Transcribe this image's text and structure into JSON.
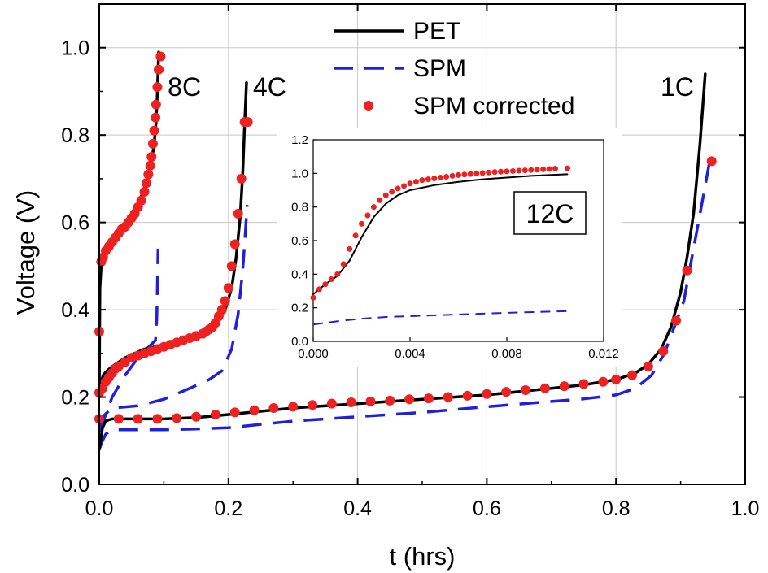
{
  "chart_data": [
    {
      "type": "line",
      "xlabel": "t (hrs)",
      "ylabel": "Voltage (V)",
      "xlim": [
        0.0,
        1.0
      ],
      "ylim": [
        0.0,
        1.1
      ],
      "xticks": [
        0.0,
        0.2,
        0.4,
        0.6,
        0.8,
        1.0
      ],
      "xtick_labels": [
        "0.0",
        "0.2",
        "0.4",
        "0.6",
        "0.8",
        "1.0"
      ],
      "yticks": [
        0.0,
        0.2,
        0.4,
        0.6,
        0.8,
        1.0
      ],
      "ytick_labels": [
        "0.0",
        "0.2",
        "0.4",
        "0.6",
        "0.8",
        "1.0"
      ],
      "grid": true,
      "legend": {
        "position": "top-center",
        "entries": [
          {
            "label": "PET",
            "style": "solid-line",
            "color": "#000000"
          },
          {
            "label": "SPM",
            "style": "dashed-line",
            "color": "#1f1fe0"
          },
          {
            "label": "SPM corrected",
            "style": "markers",
            "color": "#ee2020"
          }
        ]
      },
      "annotations": [
        {
          "text": "8C",
          "x": 0.106,
          "y": 0.89
        },
        {
          "text": "4C",
          "x": 0.238,
          "y": 0.89
        },
        {
          "text": "1C",
          "x": 0.869,
          "y": 0.89
        }
      ],
      "series": [
        {
          "name": "PET",
          "rate": "8C",
          "style": "solid",
          "color": "#000000",
          "x": [
            0.0,
            0.001,
            0.003,
            0.006,
            0.01,
            0.015,
            0.02,
            0.03,
            0.04,
            0.05,
            0.06,
            0.07,
            0.08,
            0.085,
            0.088,
            0.09,
            0.092
          ],
          "y": [
            0.21,
            0.45,
            0.5,
            0.52,
            0.535,
            0.55,
            0.56,
            0.575,
            0.59,
            0.61,
            0.64,
            0.68,
            0.73,
            0.78,
            0.83,
            0.9,
            0.99
          ]
        },
        {
          "name": "SPM",
          "rate": "8C",
          "style": "dashed",
          "color": "#1f1fe0",
          "x": [
            0.0,
            0.005,
            0.02,
            0.04,
            0.06,
            0.08,
            0.087,
            0.089,
            0.09,
            0.091
          ],
          "y": [
            0.12,
            0.14,
            0.2,
            0.25,
            0.29,
            0.32,
            0.33,
            0.38,
            0.46,
            0.54
          ]
        },
        {
          "name": "SPM corrected",
          "rate": "8C",
          "style": "markers",
          "color": "#ee2020",
          "x": [
            0.0,
            0.003,
            0.006,
            0.01,
            0.015,
            0.02,
            0.025,
            0.03,
            0.035,
            0.04,
            0.045,
            0.05,
            0.055,
            0.06,
            0.065,
            0.07,
            0.073,
            0.076,
            0.079,
            0.081,
            0.083,
            0.085,
            0.087,
            0.088,
            0.09,
            0.092,
            0.095
          ],
          "y": [
            0.35,
            0.51,
            0.52,
            0.535,
            0.545,
            0.555,
            0.565,
            0.575,
            0.585,
            0.59,
            0.6,
            0.61,
            0.62,
            0.635,
            0.65,
            0.67,
            0.69,
            0.71,
            0.73,
            0.75,
            0.78,
            0.81,
            0.84,
            0.87,
            0.91,
            0.95,
            0.98
          ]
        },
        {
          "name": "PET",
          "rate": "4C",
          "style": "solid",
          "color": "#000000",
          "x": [
            0.0,
            0.002,
            0.006,
            0.012,
            0.02,
            0.04,
            0.07,
            0.1,
            0.13,
            0.16,
            0.18,
            0.195,
            0.205,
            0.212,
            0.218,
            0.222,
            0.225,
            0.228
          ],
          "y": [
            0.21,
            0.23,
            0.25,
            0.26,
            0.27,
            0.29,
            0.31,
            0.32,
            0.33,
            0.35,
            0.37,
            0.4,
            0.45,
            0.52,
            0.61,
            0.71,
            0.82,
            0.92
          ]
        },
        {
          "name": "SPM",
          "rate": "4C",
          "style": "dashed",
          "color": "#1f1fe0",
          "x": [
            0.0,
            0.005,
            0.02,
            0.06,
            0.1,
            0.14,
            0.17,
            0.19,
            0.205,
            0.215,
            0.222,
            0.226,
            0.229
          ],
          "y": [
            0.13,
            0.155,
            0.175,
            0.18,
            0.195,
            0.22,
            0.24,
            0.26,
            0.31,
            0.39,
            0.49,
            0.57,
            0.64
          ]
        },
        {
          "name": "SPM corrected",
          "rate": "4C",
          "style": "markers",
          "color": "#ee2020",
          "x": [
            0.0,
            0.005,
            0.01,
            0.015,
            0.02,
            0.025,
            0.03,
            0.04,
            0.05,
            0.06,
            0.07,
            0.08,
            0.09,
            0.1,
            0.11,
            0.12,
            0.13,
            0.14,
            0.15,
            0.16,
            0.165,
            0.17,
            0.175,
            0.18,
            0.185,
            0.19,
            0.195,
            0.2,
            0.205,
            0.21,
            0.215,
            0.22,
            0.225,
            0.23
          ],
          "y": [
            0.21,
            0.22,
            0.235,
            0.245,
            0.255,
            0.265,
            0.27,
            0.28,
            0.29,
            0.295,
            0.3,
            0.305,
            0.31,
            0.315,
            0.32,
            0.325,
            0.33,
            0.335,
            0.34,
            0.345,
            0.35,
            0.355,
            0.36,
            0.37,
            0.385,
            0.4,
            0.42,
            0.45,
            0.5,
            0.55,
            0.62,
            0.7,
            0.83,
            0.83
          ]
        },
        {
          "name": "PET",
          "rate": "1C",
          "style": "solid",
          "color": "#000000",
          "x": [
            0.0,
            0.005,
            0.01,
            0.015,
            0.02,
            0.05,
            0.1,
            0.15,
            0.2,
            0.3,
            0.4,
            0.5,
            0.6,
            0.7,
            0.75,
            0.8,
            0.83,
            0.85,
            0.87,
            0.885,
            0.9,
            0.91,
            0.92,
            0.93,
            0.938
          ],
          "y": [
            0.08,
            0.13,
            0.145,
            0.148,
            0.15,
            0.15,
            0.15,
            0.153,
            0.16,
            0.175,
            0.185,
            0.195,
            0.205,
            0.22,
            0.228,
            0.24,
            0.255,
            0.275,
            0.31,
            0.36,
            0.44,
            0.52,
            0.62,
            0.78,
            0.94
          ]
        },
        {
          "name": "SPM",
          "rate": "1C",
          "style": "dashed",
          "color": "#1f1fe0",
          "x": [
            0.0,
            0.005,
            0.01,
            0.02,
            0.05,
            0.1,
            0.15,
            0.2,
            0.3,
            0.4,
            0.5,
            0.6,
            0.7,
            0.75,
            0.8,
            0.83,
            0.855,
            0.875,
            0.89,
            0.905,
            0.915,
            0.925,
            0.935,
            0.945
          ],
          "y": [
            0.08,
            0.1,
            0.115,
            0.125,
            0.125,
            0.125,
            0.127,
            0.13,
            0.145,
            0.155,
            0.165,
            0.178,
            0.19,
            0.196,
            0.205,
            0.22,
            0.25,
            0.3,
            0.36,
            0.42,
            0.5,
            0.58,
            0.66,
            0.74
          ]
        },
        {
          "name": "SPM corrected",
          "rate": "1C",
          "style": "markers",
          "color": "#ee2020",
          "x": [
            0.0,
            0.03,
            0.06,
            0.09,
            0.12,
            0.15,
            0.18,
            0.21,
            0.24,
            0.27,
            0.3,
            0.33,
            0.36,
            0.39,
            0.42,
            0.45,
            0.48,
            0.51,
            0.54,
            0.57,
            0.6,
            0.63,
            0.66,
            0.69,
            0.72,
            0.75,
            0.78,
            0.8,
            0.825,
            0.85,
            0.873,
            0.893,
            0.91,
            0.948
          ],
          "y": [
            0.15,
            0.15,
            0.15,
            0.15,
            0.152,
            0.155,
            0.16,
            0.165,
            0.17,
            0.175,
            0.178,
            0.182,
            0.185,
            0.188,
            0.19,
            0.192,
            0.195,
            0.197,
            0.2,
            0.203,
            0.207,
            0.212,
            0.216,
            0.22,
            0.225,
            0.23,
            0.235,
            0.24,
            0.25,
            0.27,
            0.305,
            0.375,
            0.49,
            0.74
          ]
        }
      ]
    },
    {
      "type": "line",
      "xlim": [
        0.0,
        0.012
      ],
      "ylim": [
        0.0,
        1.2
      ],
      "xticks": [
        0.0,
        0.004,
        0.008,
        0.012
      ],
      "xtick_labels": [
        "0.000",
        "0.004",
        "0.008",
        "0.012"
      ],
      "yticks": [
        0.0,
        0.2,
        0.4,
        0.6,
        0.8,
        1.0,
        1.2
      ],
      "ytick_labels": [
        "0.0",
        "0.2",
        "0.4",
        "0.6",
        "0.8",
        "1.0",
        "1.2"
      ],
      "grid": false,
      "annotations": [
        {
          "text": "12C",
          "boxed": true
        }
      ],
      "series": [
        {
          "name": "PET",
          "style": "solid",
          "color": "#000000",
          "x": [
            0.0,
            0.0005,
            0.001,
            0.0015,
            0.002,
            0.0025,
            0.003,
            0.0035,
            0.004,
            0.005,
            0.006,
            0.007,
            0.008,
            0.009,
            0.0105
          ],
          "y": [
            0.28,
            0.34,
            0.39,
            0.48,
            0.62,
            0.74,
            0.82,
            0.87,
            0.9,
            0.93,
            0.95,
            0.965,
            0.975,
            0.985,
            0.995
          ]
        },
        {
          "name": "SPM",
          "style": "dashed",
          "color": "#1f1fe0",
          "x": [
            0.0,
            0.001,
            0.002,
            0.003,
            0.004,
            0.006,
            0.008,
            0.0105
          ],
          "y": [
            0.1,
            0.12,
            0.135,
            0.145,
            0.15,
            0.16,
            0.17,
            0.18
          ]
        },
        {
          "name": "SPM corrected",
          "style": "markers",
          "color": "#ee2020",
          "x": [
            0.0,
            0.00025,
            0.0005,
            0.00075,
            0.001,
            0.00125,
            0.0015,
            0.00175,
            0.002,
            0.00225,
            0.0025,
            0.00275,
            0.003,
            0.00325,
            0.0035,
            0.00375,
            0.004,
            0.00425,
            0.0045,
            0.00475,
            0.005,
            0.00525,
            0.0055,
            0.00575,
            0.006,
            0.00625,
            0.0065,
            0.00675,
            0.007,
            0.00725,
            0.0075,
            0.00775,
            0.008,
            0.00825,
            0.0085,
            0.00875,
            0.009,
            0.00925,
            0.0095,
            0.00975,
            0.01,
            0.0105
          ],
          "y": [
            0.26,
            0.31,
            0.34,
            0.37,
            0.4,
            0.46,
            0.55,
            0.63,
            0.7,
            0.75,
            0.8,
            0.84,
            0.87,
            0.89,
            0.91,
            0.925,
            0.94,
            0.95,
            0.96,
            0.965,
            0.97,
            0.975,
            0.98,
            0.985,
            0.99,
            0.993,
            0.996,
            0.999,
            1.002,
            1.005,
            1.008,
            1.01,
            1.012,
            1.014,
            1.016,
            1.018,
            1.02,
            1.022,
            1.024,
            1.026,
            1.028,
            1.03
          ]
        }
      ]
    }
  ]
}
